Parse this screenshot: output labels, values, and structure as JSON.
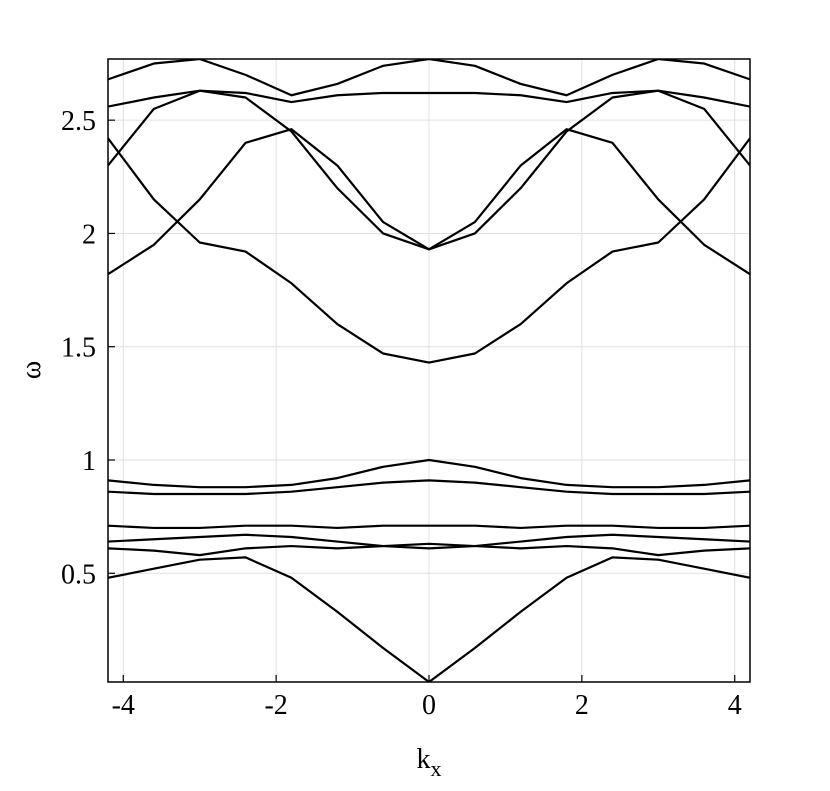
{
  "chart_data": {
    "type": "line",
    "color": "#000000",
    "grid": true,
    "xlabel": {
      "text": "k",
      "subscript": "x"
    },
    "ylabel": "ω",
    "x": [
      -4.2,
      -3.6,
      -3.0,
      -2.4,
      -1.8,
      -1.2,
      -0.6,
      0,
      0.6,
      1.2,
      1.8,
      2.4,
      3.0,
      3.6,
      4.2
    ],
    "xlim": [
      -4.2,
      4.2
    ],
    "xticks": [
      -4,
      -2,
      0,
      2,
      4
    ],
    "ylim": [
      0.02,
      2.77
    ],
    "yticks": [
      0.5,
      1,
      1.5,
      2,
      2.5
    ],
    "series": [
      {
        "values": [
          2.68,
          2.75,
          2.77,
          2.7,
          2.61,
          2.66,
          2.74,
          2.77,
          2.74,
          2.66,
          2.61,
          2.7,
          2.77,
          2.75,
          2.68
        ]
      },
      {
        "values": [
          2.56,
          2.6,
          2.63,
          2.62,
          2.58,
          2.61,
          2.62,
          2.62,
          2.62,
          2.61,
          2.58,
          2.62,
          2.63,
          2.6,
          2.56
        ]
      },
      {
        "values": [
          2.3,
          2.55,
          2.63,
          2.6,
          2.45,
          2.2,
          2.0,
          1.93,
          2.0,
          2.2,
          2.45,
          2.6,
          2.63,
          2.55,
          2.3
        ]
      },
      {
        "values": [
          2.42,
          2.15,
          1.96,
          1.92,
          1.78,
          1.6,
          1.47,
          1.43,
          1.47,
          1.6,
          1.78,
          1.92,
          1.96,
          2.15,
          2.42
        ]
      },
      {
        "values": [
          1.82,
          1.95,
          2.15,
          2.4,
          2.46,
          2.3,
          2.05,
          1.93,
          2.05,
          2.3,
          2.46,
          2.4,
          2.15,
          1.95,
          1.82
        ]
      },
      {
        "values": [
          0.91,
          0.89,
          0.88,
          0.88,
          0.89,
          0.92,
          0.97,
          1.0,
          0.97,
          0.92,
          0.89,
          0.88,
          0.88,
          0.89,
          0.91
        ]
      },
      {
        "values": [
          0.86,
          0.85,
          0.85,
          0.85,
          0.86,
          0.88,
          0.9,
          0.91,
          0.9,
          0.88,
          0.86,
          0.85,
          0.85,
          0.85,
          0.86
        ]
      },
      {
        "values": [
          0.71,
          0.7,
          0.7,
          0.71,
          0.71,
          0.7,
          0.71,
          0.71,
          0.71,
          0.7,
          0.71,
          0.71,
          0.7,
          0.7,
          0.71
        ]
      },
      {
        "values": [
          0.64,
          0.65,
          0.66,
          0.67,
          0.66,
          0.64,
          0.62,
          0.61,
          0.62,
          0.64,
          0.66,
          0.67,
          0.66,
          0.65,
          0.64
        ]
      },
      {
        "values": [
          0.61,
          0.6,
          0.58,
          0.61,
          0.62,
          0.61,
          0.62,
          0.63,
          0.62,
          0.61,
          0.62,
          0.61,
          0.58,
          0.6,
          0.61
        ]
      },
      {
        "values": [
          0.48,
          0.52,
          0.56,
          0.57,
          0.48,
          0.33,
          0.17,
          0.02,
          0.17,
          0.33,
          0.48,
          0.57,
          0.56,
          0.52,
          0.48
        ]
      }
    ]
  }
}
